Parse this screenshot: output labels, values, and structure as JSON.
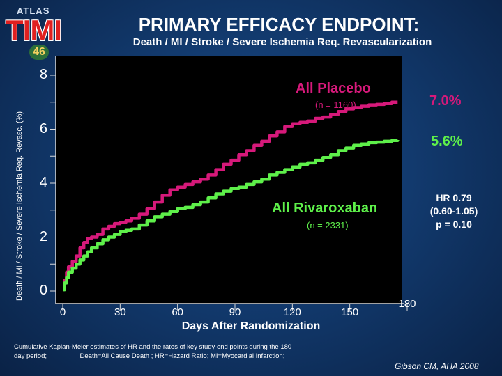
{
  "header": {
    "logo_atlas": "ATLAS",
    "logo_timi": "TIMI",
    "logo_number": "46",
    "title": "PRIMARY EFFICACY ENDPOINT:",
    "subtitle": "Death / MI / Stroke / Severe Ischemia Req. Revascularization"
  },
  "chart_data": {
    "type": "line",
    "title": "PRIMARY EFFICACY ENDPOINT:",
    "xlabel": "Days After Randomization",
    "ylabel": "Death / MI / Stroke / Severe Ischemia Req. Revasc. (%)",
    "xlim": [
      0,
      180
    ],
    "ylim": [
      0,
      9
    ],
    "x_ticks": [
      "0",
      "30",
      "60",
      "90",
      "120",
      "150",
      "180"
    ],
    "y_ticks": [
      "0",
      "2",
      "4",
      "6",
      "8"
    ],
    "series": [
      {
        "name": "All Placebo",
        "n_label": "(n = 1160)",
        "end_label": "7.0%",
        "color": "#d6197a",
        "x": [
          0,
          1,
          2,
          3,
          5,
          7,
          9,
          11,
          13,
          15,
          18,
          21,
          24,
          27,
          30,
          33,
          36,
          40,
          44,
          48,
          52,
          56,
          60,
          64,
          68,
          72,
          76,
          80,
          84,
          88,
          92,
          96,
          100,
          104,
          108,
          112,
          116,
          120,
          124,
          128,
          132,
          136,
          140,
          144,
          148,
          152,
          156,
          160,
          164,
          168,
          172,
          175
        ],
        "y": [
          0.1,
          0.4,
          0.7,
          0.9,
          1.1,
          1.3,
          1.6,
          1.8,
          1.95,
          2.0,
          2.1,
          2.3,
          2.4,
          2.5,
          2.55,
          2.6,
          2.7,
          2.85,
          3.05,
          3.3,
          3.55,
          3.75,
          3.85,
          3.95,
          4.05,
          4.15,
          4.3,
          4.5,
          4.7,
          4.85,
          5.05,
          5.2,
          5.4,
          5.55,
          5.75,
          5.9,
          6.1,
          6.2,
          6.25,
          6.3,
          6.4,
          6.45,
          6.55,
          6.65,
          6.75,
          6.8,
          6.85,
          6.9,
          6.92,
          6.95,
          7.0,
          7.0
        ]
      },
      {
        "name": "All Rivaroxaban",
        "n_label": "(n = 2331)",
        "end_label": "5.6%",
        "color": "#5ef04a",
        "x": [
          0,
          1,
          2,
          3,
          5,
          7,
          9,
          11,
          13,
          15,
          18,
          21,
          24,
          27,
          30,
          33,
          36,
          40,
          44,
          48,
          52,
          56,
          60,
          64,
          68,
          72,
          76,
          80,
          84,
          88,
          92,
          96,
          100,
          104,
          108,
          112,
          116,
          120,
          124,
          128,
          132,
          136,
          140,
          144,
          148,
          152,
          156,
          160,
          164,
          168,
          172,
          175
        ],
        "y": [
          0.05,
          0.3,
          0.5,
          0.7,
          0.85,
          1.0,
          1.15,
          1.3,
          1.45,
          1.6,
          1.75,
          1.9,
          2.0,
          2.1,
          2.2,
          2.25,
          2.3,
          2.45,
          2.6,
          2.75,
          2.85,
          2.95,
          3.05,
          3.1,
          3.2,
          3.3,
          3.45,
          3.6,
          3.7,
          3.8,
          3.85,
          3.95,
          4.05,
          4.15,
          4.3,
          4.4,
          4.5,
          4.6,
          4.7,
          4.75,
          4.85,
          4.95,
          5.05,
          5.2,
          5.3,
          5.4,
          5.45,
          5.5,
          5.52,
          5.55,
          5.58,
          5.6
        ]
      }
    ],
    "annotations": {
      "hr": "HR 0.79",
      "ci": "(0.60-1.05)",
      "p": "p = 0.10"
    }
  },
  "xlabel_text": "Days After Randomization",
  "footnote": {
    "line1": "Cumulative Kaplan-Meier estimates of HR and the rates of key study end points during the 180",
    "line2": "day period;                  Death=All Cause Death ; HR=Hazard Ratio; MI=Myocardial Infarction;"
  },
  "citation": "Gibson CM, AHA 2008",
  "colors": {
    "placebo": "#d6197a",
    "rivaroxaban": "#5ef04a",
    "plot_bg": "#000000",
    "axis": "#d9d9d9"
  }
}
